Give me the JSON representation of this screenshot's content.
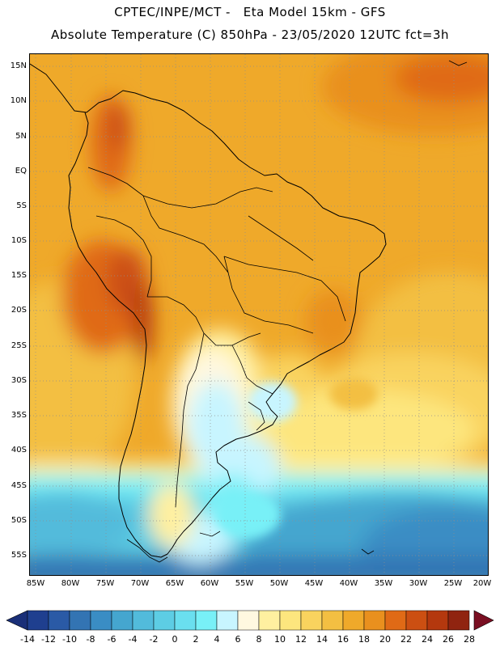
{
  "header": {
    "title_line1": "CPTEC/INPE/MCT -   Eta Model 15km - GFS",
    "title_line2": "Absolute Temperature (C) 850hPa - 23/05/2020 12UTC fct=3h"
  },
  "map": {
    "region": "South America",
    "variable": "Absolute Temperature (C) 850hPa",
    "lat_labels": [
      "15N",
      "10N",
      "5N",
      "EQ",
      "5S",
      "10S",
      "15S",
      "20S",
      "25S",
      "30S",
      "35S",
      "40S",
      "45S",
      "50S",
      "55S"
    ],
    "lon_labels": [
      "85W",
      "80W",
      "75W",
      "70W",
      "65W",
      "60W",
      "55W",
      "50W",
      "45W",
      "40W",
      "35W",
      "30W",
      "25W",
      "20W"
    ],
    "grid": "dotted",
    "colors": {
      "land_outline": "#000000",
      "gridline": "#9a9a9a"
    }
  },
  "colorbar": {
    "labels": [
      "-14",
      "-12",
      "-10",
      "-8",
      "-6",
      "-4",
      "-2",
      "0",
      "2",
      "4",
      "6",
      "8",
      "10",
      "12",
      "14",
      "16",
      "18",
      "20",
      "22",
      "24",
      "26",
      "28"
    ],
    "colors": [
      "#1f3f8f",
      "#2a5aa6",
      "#3374b3",
      "#3a8dc4",
      "#45a6cf",
      "#52bbdb",
      "#5dcde4",
      "#6adfef",
      "#78f0f7",
      "#c8f5ff",
      "#fff8e0",
      "#fff0a0",
      "#fde67e",
      "#f9d35e",
      "#f3bf42",
      "#efa92a",
      "#e9901e",
      "#e06a16",
      "#cc4f12",
      "#b4380e",
      "#902410"
    ],
    "low_arrow_color": "#1a2f78",
    "high_arrow_color": "#7a0f22"
  }
}
